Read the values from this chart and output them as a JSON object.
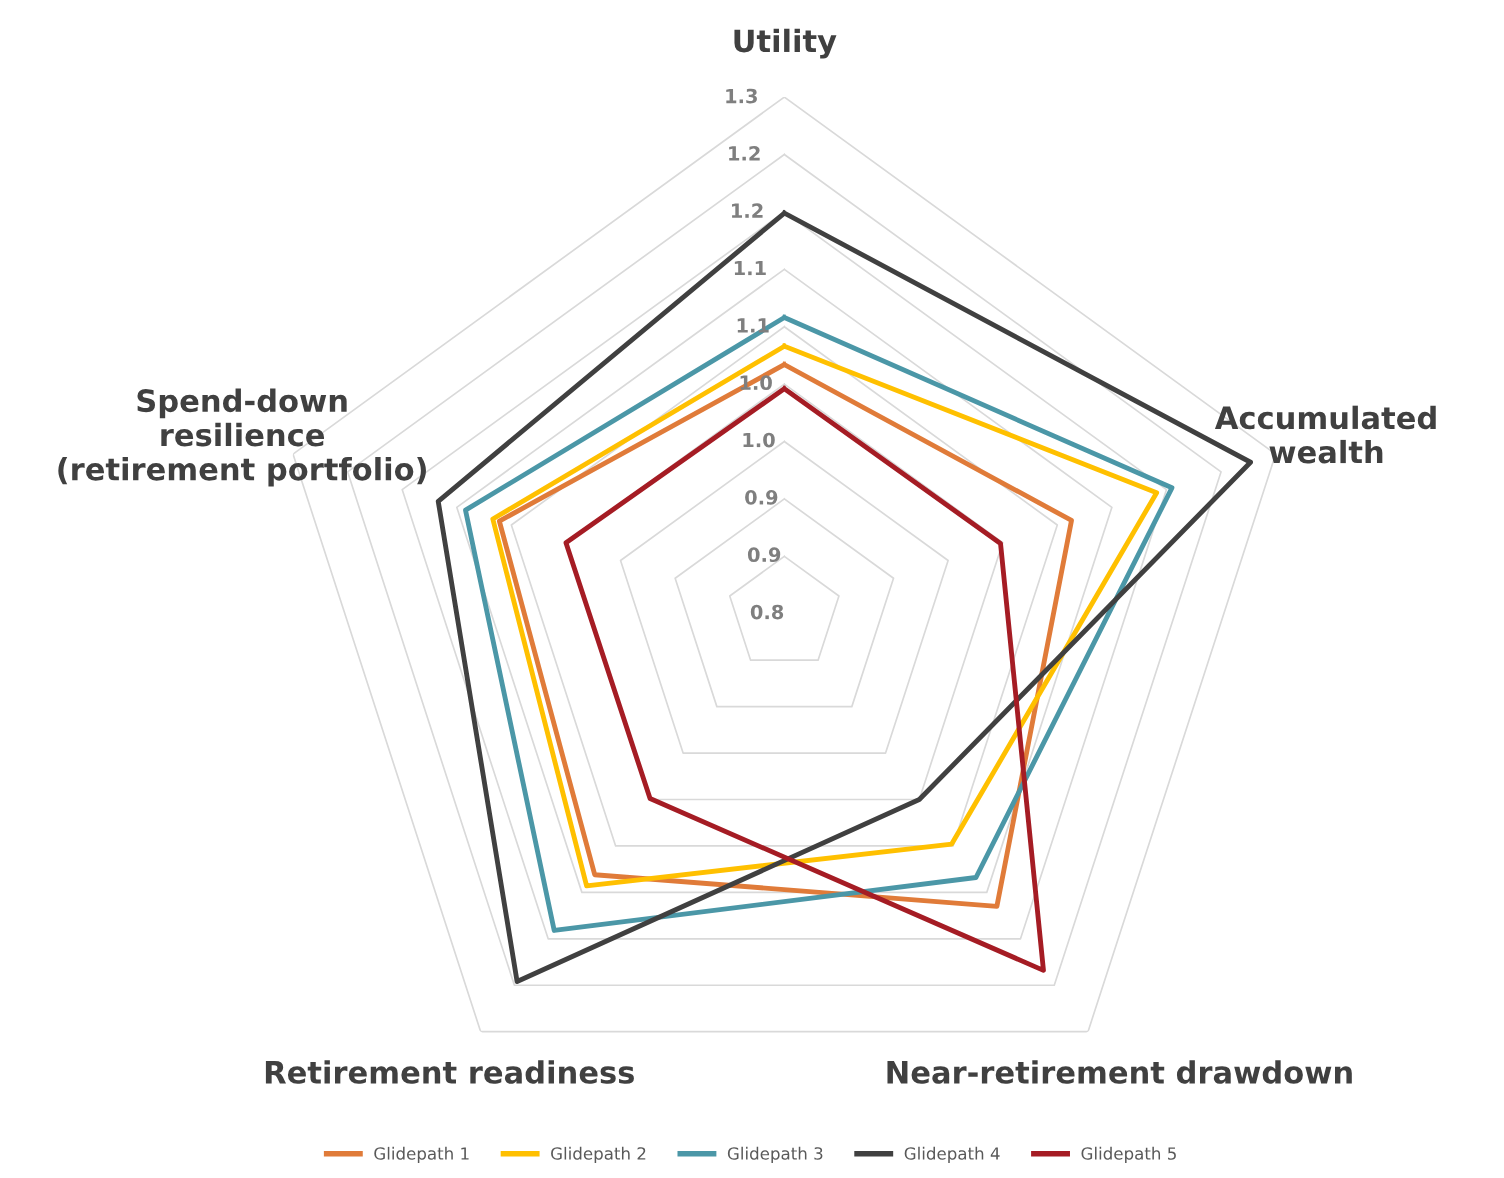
{
  "chart_data": {
    "type": "radar",
    "categories": [
      "Utility",
      "Accumulated\nwealth",
      "Near-retirement drawdown",
      "Retirement readiness",
      "Spend-down\nresilience\n(retirement portfolio)"
    ],
    "ylim": [
      0.8,
      1.25
    ],
    "yticks": [
      0.8,
      {
        "value": 0.85,
        "label": "0.9"
      },
      0.9,
      {
        "value": 0.95,
        "label": "1.0"
      },
      {
        "value": 1.0,
        "label": "1.0"
      },
      {
        "value": 1.05,
        "label": "1.1"
      },
      1.1,
      {
        "value": 1.15,
        "label": "1.2"
      },
      1.2,
      {
        "value": 1.25,
        "label": "1.3"
      }
    ],
    "grid": true,
    "legend": "bottom",
    "line_style": "solid",
    "marker": "none",
    "series": [
      {
        "name": "Glidepath 1",
        "color": "#e07b39",
        "values": [
          1.017,
          1.063,
          1.115,
          1.081,
          1.061
        ]
      },
      {
        "name": "Glidepath 2",
        "color": "#ffc000",
        "values": [
          1.033,
          1.141,
          1.048,
          1.093,
          1.067
        ]
      },
      {
        "name": "Glidepath 3",
        "color": "#4b97a7",
        "values": [
          1.058,
          1.155,
          1.084,
          1.141,
          1.092
        ]
      },
      {
        "name": "Glidepath 4",
        "color": "#404040",
        "values": [
          1.149,
          1.227,
          1.0,
          1.196,
          1.117
        ]
      },
      {
        "name": "Glidepath 5",
        "color": "#a51c24",
        "values": [
          0.996,
          0.998,
          1.184,
          0.999,
          1.0
        ]
      }
    ]
  }
}
